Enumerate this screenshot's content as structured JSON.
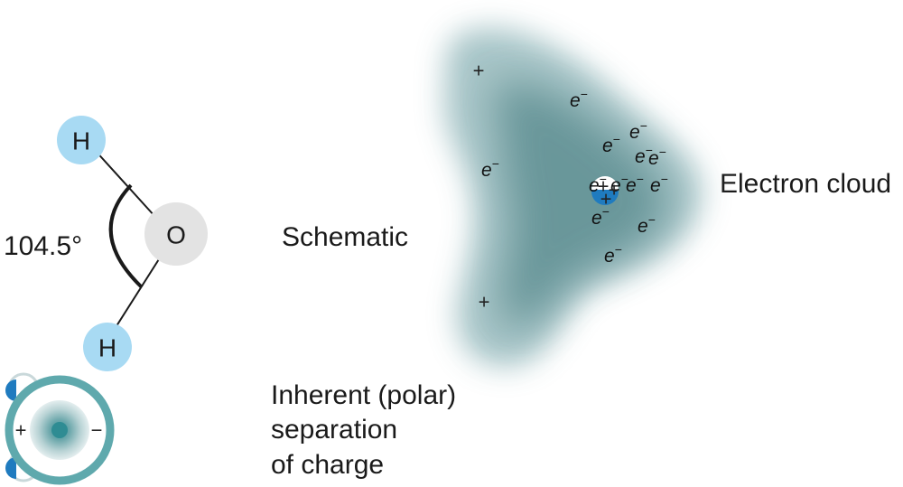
{
  "molecule": {
    "hydrogen_top": "H",
    "oxygen": "O",
    "hydrogen_bottom": "H",
    "bond_angle": "104.5°"
  },
  "labels": {
    "schematic": "Schematic",
    "electron_cloud": "Electron cloud",
    "polar_separation": [
      "Inherent (polar)",
      "separation",
      "of charge"
    ]
  },
  "cloud": {
    "electron_symbol": "e",
    "electron_superscript": "−",
    "electron_count": 13,
    "plus_symbol": "+",
    "dipole_plus": "+",
    "dipole_minus": "−"
  },
  "colors": {
    "hydrogen_fill": "#a8daf3",
    "oxygen_fill": "#e3e3e3",
    "cloud_fill": "#5f8f93",
    "nucleus_blue": "#1f7bbf",
    "dipole_ring": "#5fa9ad",
    "dipole_core": "#2f8c93"
  }
}
